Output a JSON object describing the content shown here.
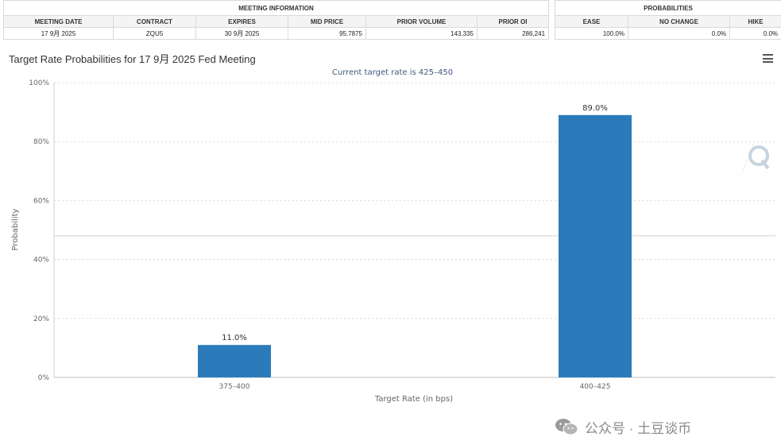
{
  "meeting_info": {
    "group_title": "MEETING INFORMATION",
    "columns": [
      "MEETING DATE",
      "CONTRACT",
      "EXPIRES",
      "MID PRICE",
      "PRIOR VOLUME",
      "PRIOR OI"
    ],
    "row": [
      "17 9月 2025",
      "ZQU5",
      "30 9月 2025",
      "95.7875",
      "143,335",
      "286,241"
    ]
  },
  "probabilities": {
    "group_title": "PROBABILITIES",
    "columns": [
      "EASE",
      "NO CHANGE",
      "HIKE"
    ],
    "row": [
      "100.0%",
      "0.0%",
      "0.0%"
    ]
  },
  "chart_data": {
    "type": "bar",
    "title": "Target Rate Probabilities for 17 9月 2025 Fed Meeting",
    "subtitle": "Current target rate is 425–450",
    "xlabel": "Target Rate (in bps)",
    "ylabel": "Probability",
    "categories": [
      "375–400",
      "400–425"
    ],
    "values": [
      11.0,
      89.0
    ],
    "data_labels": [
      "11.0%",
      "89.0%"
    ],
    "ylim": [
      0,
      100
    ],
    "yticks": [
      0,
      20,
      40,
      60,
      80,
      100
    ],
    "ytick_labels": [
      "0%",
      "20%",
      "40%",
      "60%",
      "80%",
      "100%"
    ],
    "grid": true,
    "bar_color": "#2b7bba",
    "reference_line_value": 48
  },
  "watermark": {
    "text": "公众号 · 土豆谈币",
    "icon": "wechat-icon",
    "logo_icon": "q-logo-icon"
  },
  "menu": {
    "icon": "hamburger-menu-icon"
  }
}
